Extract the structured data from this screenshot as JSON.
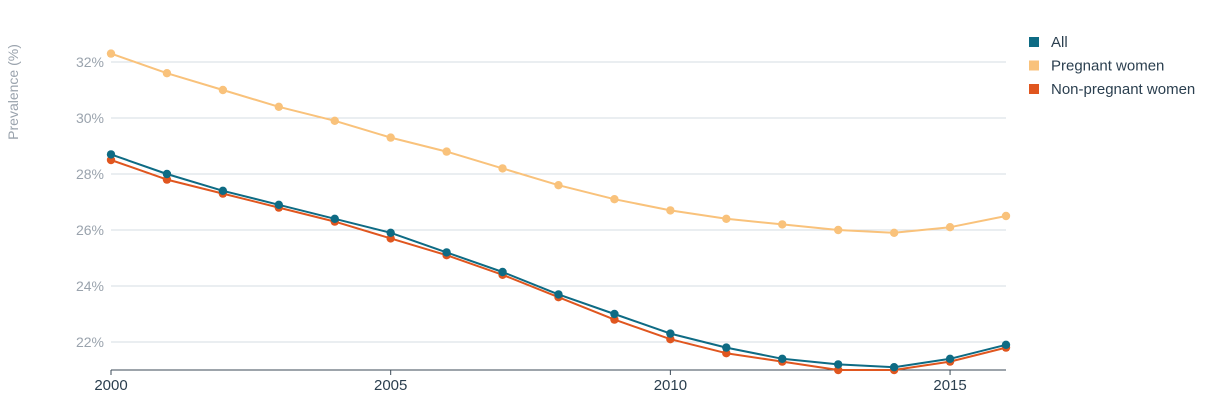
{
  "chart_data": {
    "type": "line",
    "ylabel": "Prevalence (%)",
    "xlabel": "",
    "x": [
      2000,
      2001,
      2002,
      2003,
      2004,
      2005,
      2006,
      2007,
      2008,
      2009,
      2010,
      2011,
      2012,
      2013,
      2014,
      2015,
      2016
    ],
    "xticks": [
      "2000",
      "2005",
      "2010",
      "2015"
    ],
    "xtick_values": [
      2000,
      2005,
      2010,
      2015
    ],
    "yticks": [
      "22%",
      "24%",
      "26%",
      "28%",
      "30%",
      "32%"
    ],
    "ytick_values": [
      22,
      24,
      26,
      28,
      30,
      32
    ],
    "xlim": [
      2000,
      2016
    ],
    "ylim": [
      21,
      33.2
    ],
    "grid": true,
    "legend_position": "top-right",
    "series": [
      {
        "name": "All",
        "color": "#0e6b84",
        "values": [
          28.7,
          28.0,
          27.4,
          26.9,
          26.4,
          25.9,
          25.2,
          24.5,
          23.7,
          23.0,
          22.3,
          21.8,
          21.4,
          21.2,
          21.1,
          21.4,
          21.9
        ]
      },
      {
        "name": "Pregnant women",
        "color": "#f9c27b",
        "values": [
          32.3,
          31.6,
          31.0,
          30.4,
          29.9,
          29.3,
          28.8,
          28.2,
          27.6,
          27.1,
          26.7,
          26.4,
          26.2,
          26.0,
          25.9,
          26.1,
          26.5
        ]
      },
      {
        "name": "Non-pregnant women",
        "color": "#e0561f",
        "values": [
          28.5,
          27.8,
          27.3,
          26.8,
          26.3,
          25.7,
          25.1,
          24.4,
          23.6,
          22.8,
          22.1,
          21.6,
          21.3,
          21.0,
          21.0,
          21.3,
          21.8
        ]
      }
    ]
  }
}
